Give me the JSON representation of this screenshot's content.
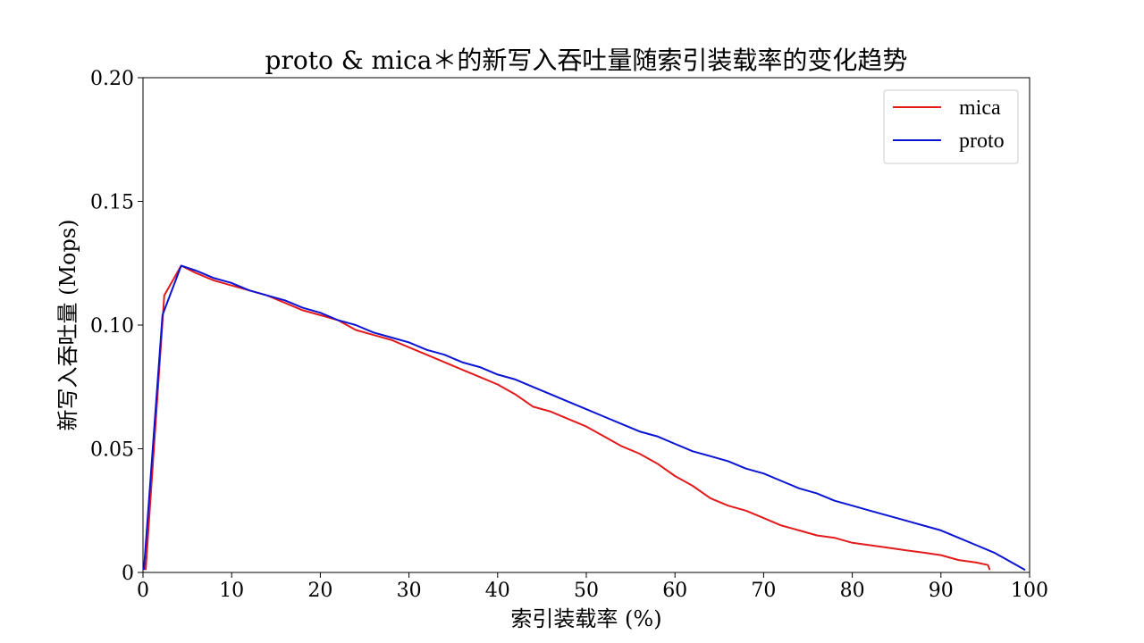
{
  "chart_data": {
    "type": "line",
    "title": "proto & mica＊的新写入吞吐量随索引装载率的变化趋势",
    "xlabel": "索引装载率 (%)",
    "ylabel": "新写入吞吐量 (Mops)",
    "xlim": [
      0,
      100
    ],
    "ylim": [
      0,
      0.2
    ],
    "x_ticks": [
      0,
      10,
      20,
      30,
      40,
      50,
      60,
      70,
      80,
      90,
      100
    ],
    "x_tick_labels": [
      "0",
      "10",
      "20",
      "30",
      "40",
      "50",
      "60",
      "70",
      "80",
      "90",
      "100"
    ],
    "y_ticks": [
      0,
      0.05,
      0.1,
      0.15,
      0.2
    ],
    "y_tick_labels": [
      "0",
      "0.05",
      "0.10",
      "0.15",
      "0.20"
    ],
    "grid": false,
    "legend_position": "top-right",
    "series": [
      {
        "name": "mica",
        "color": "#e31a1c",
        "x": [
          0.3,
          2.4,
          4.3,
          6,
          8,
          10,
          12,
          14,
          16,
          18,
          20,
          22,
          24,
          26,
          28,
          30,
          32,
          34,
          36,
          38,
          40,
          42,
          44,
          46,
          48,
          50,
          52,
          54,
          56,
          58,
          60,
          62,
          64,
          66,
          68,
          70,
          72,
          74,
          76,
          78,
          80,
          82,
          84,
          86,
          88,
          90,
          92,
          94,
          95.3,
          95.5
        ],
        "y": [
          0.001,
          0.112,
          0.124,
          0.121,
          0.118,
          0.116,
          0.114,
          0.112,
          0.109,
          0.106,
          0.104,
          0.102,
          0.098,
          0.096,
          0.094,
          0.091,
          0.088,
          0.085,
          0.082,
          0.079,
          0.076,
          0.072,
          0.067,
          0.065,
          0.062,
          0.059,
          0.055,
          0.051,
          0.048,
          0.044,
          0.039,
          0.035,
          0.03,
          0.027,
          0.025,
          0.022,
          0.019,
          0.017,
          0.015,
          0.014,
          0.012,
          0.011,
          0.01,
          0.009,
          0.008,
          0.007,
          0.005,
          0.004,
          0.003,
          0.001
        ]
      },
      {
        "name": "proto",
        "color": "#0a14d2",
        "x": [
          0.1,
          2.2,
          4.3,
          6,
          8,
          10,
          12,
          14,
          16,
          18,
          20,
          22,
          24,
          26,
          28,
          30,
          32,
          34,
          36,
          38,
          40,
          42,
          44,
          46,
          48,
          50,
          52,
          54,
          56,
          58,
          60,
          62,
          64,
          66,
          68,
          70,
          72,
          74,
          76,
          78,
          80,
          82,
          84,
          86,
          88,
          90,
          92,
          94,
          96,
          98,
          99.5
        ],
        "y": [
          0.001,
          0.104,
          0.124,
          0.122,
          0.119,
          0.117,
          0.114,
          0.112,
          0.11,
          0.107,
          0.105,
          0.102,
          0.1,
          0.097,
          0.095,
          0.093,
          0.09,
          0.088,
          0.085,
          0.083,
          0.08,
          0.078,
          0.075,
          0.072,
          0.069,
          0.066,
          0.063,
          0.06,
          0.057,
          0.055,
          0.052,
          0.049,
          0.047,
          0.045,
          0.042,
          0.04,
          0.037,
          0.034,
          0.032,
          0.029,
          0.027,
          0.025,
          0.023,
          0.021,
          0.019,
          0.017,
          0.014,
          0.011,
          0.008,
          0.004,
          0.001
        ]
      }
    ]
  }
}
